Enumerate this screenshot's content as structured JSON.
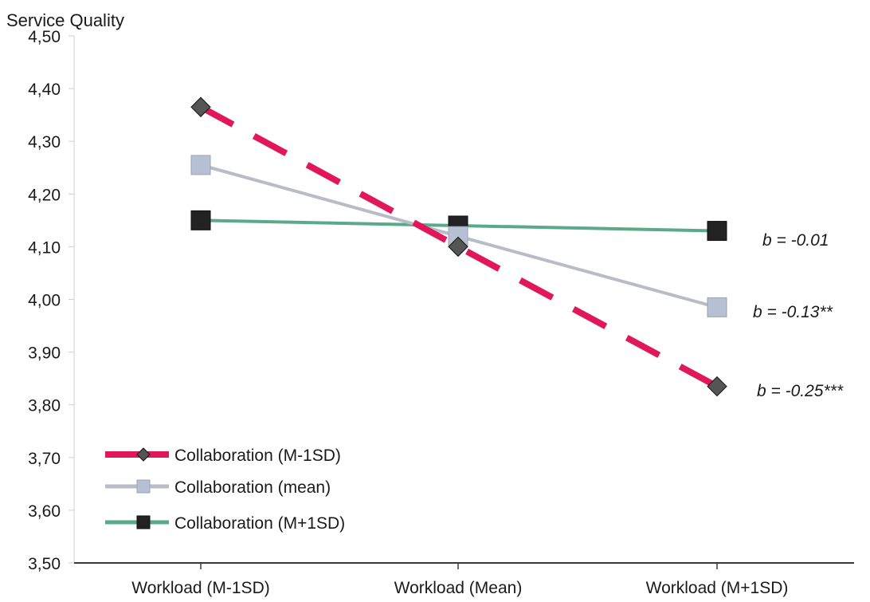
{
  "chart_data": {
    "type": "line",
    "ylabel": "Service Quality",
    "xlabel": "",
    "categories": [
      "Workload (M-1SD)",
      "Workload (Mean)",
      "Workload (M+1SD)"
    ],
    "ylim": [
      3.5,
      4.5
    ],
    "yticks": [
      "3,50",
      "3,60",
      "3,70",
      "3,80",
      "3,90",
      "4,00",
      "4,10",
      "4,20",
      "4,30",
      "4,40",
      "4,50"
    ],
    "grid": false,
    "legend_position": "bottom-left",
    "series": [
      {
        "name": "Collaboration (M-1SD)",
        "values": [
          4.365,
          4.1,
          3.835
        ],
        "color": "#e0185a",
        "marker_color": "#555555",
        "marker": "diamond",
        "line_style": "dashed"
      },
      {
        "name": "Collaboration (mean)",
        "values": [
          4.255,
          4.12,
          3.985
        ],
        "color": "#b8bcc9",
        "marker_color": "#b7c0d2",
        "marker": "square",
        "line_style": "solid"
      },
      {
        "name": "Collaboration (M+1SD)",
        "values": [
          4.15,
          4.14,
          4.13
        ],
        "color": "#5aaa8a",
        "marker_color": "#222222",
        "marker": "square",
        "line_style": "solid"
      }
    ],
    "annotations": [
      "b = -0.01",
      "b = -0.13**",
      "b = -0.25***"
    ]
  }
}
